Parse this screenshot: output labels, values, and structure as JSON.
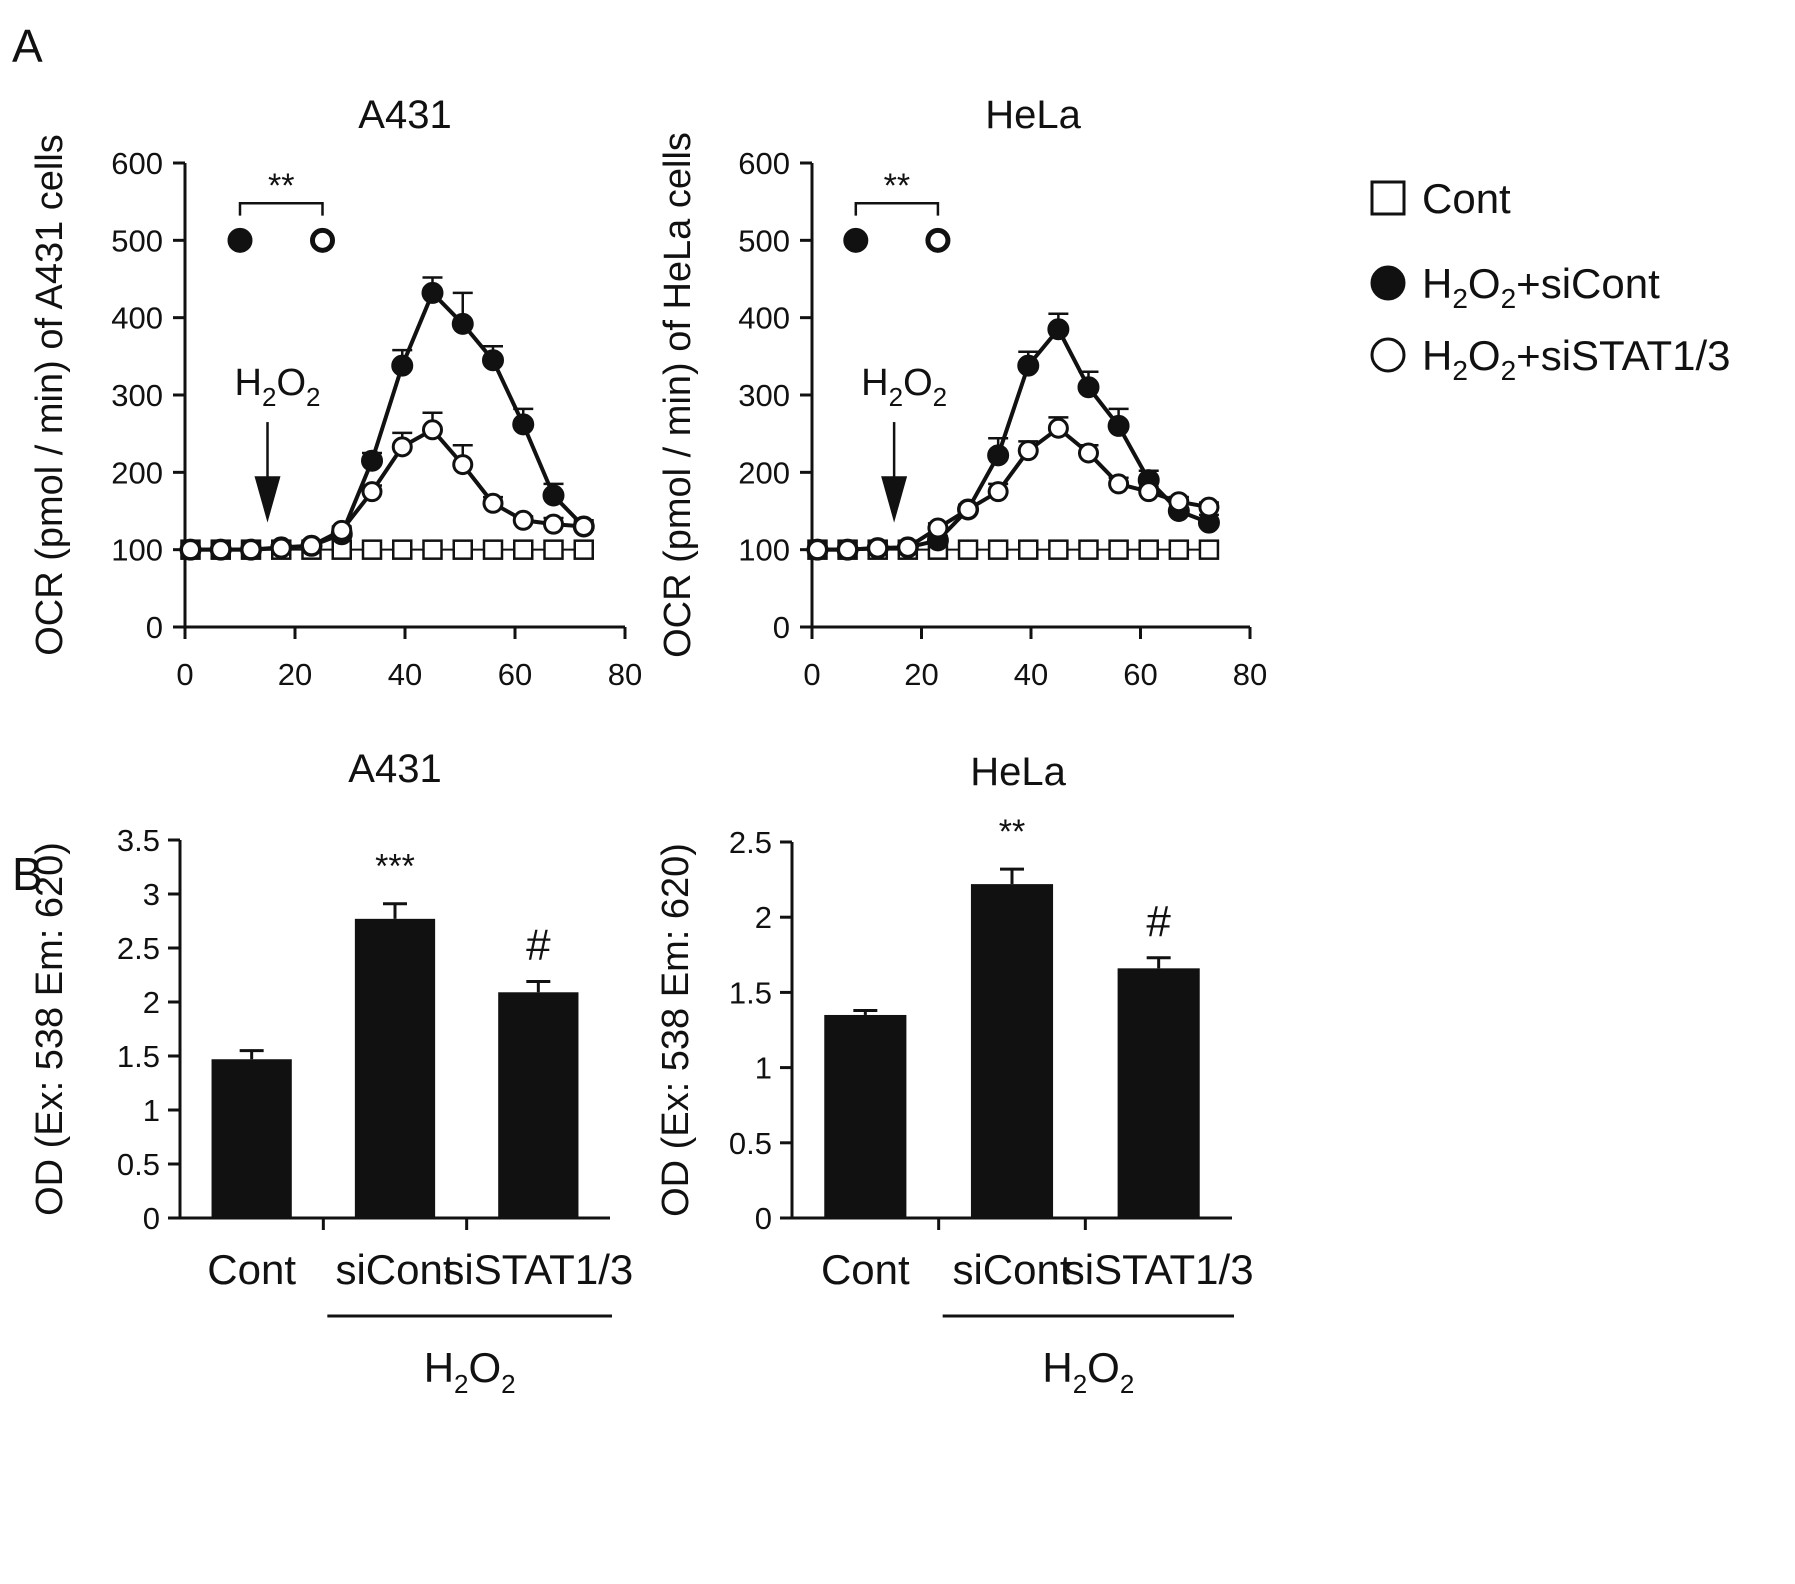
{
  "colors": {
    "ink": "#111111",
    "background": "#ffffff"
  },
  "panels": {
    "a": "A",
    "b": "B"
  },
  "legend": [
    {
      "label": "Cont",
      "marker": "open-square"
    },
    {
      "label_main": "H",
      "label_sub1": "2",
      "label_mid": "O",
      "label_sub2": "2",
      "label_tail": "+siCont",
      "marker": "filled-circle"
    },
    {
      "label_main": "H",
      "label_sub1": "2",
      "label_mid": "O",
      "label_sub2": "2",
      "label_tail": "+siSTAT1/3",
      "marker": "open-circle"
    }
  ],
  "annotations": {
    "h2o2_main": "H",
    "h2o2_sub1": "2",
    "h2o2_mid": "O",
    "h2o2_sub2": "2",
    "stars2": "**",
    "stars3": "***",
    "hash": "#"
  },
  "chart_data": [
    {
      "type": "line",
      "title": "A431",
      "ylabel": "OCR (pmol / min) of A431 cells",
      "xlim": [
        0,
        80
      ],
      "ylim": [
        0,
        600
      ],
      "xticks": [
        "0",
        "20",
        "40",
        "60",
        "80"
      ],
      "yticks": [
        "0",
        "100",
        "200",
        "300",
        "400",
        "500",
        "600"
      ],
      "arrow_x": 15,
      "sig_pair": {
        "x1": 10,
        "x2": 25,
        "y": 500,
        "label": "**"
      },
      "series": [
        {
          "name": "Cont",
          "marker": "open-square",
          "x": [
            1,
            6.5,
            12,
            17.5,
            23,
            28.5,
            34,
            39.5,
            45,
            50.5,
            56,
            61.5,
            67,
            72.5
          ],
          "y": [
            100,
            100,
            100,
            100,
            100,
            100,
            100,
            100,
            100,
            100,
            100,
            100,
            100,
            100
          ],
          "err": [
            0,
            0,
            0,
            0,
            0,
            0,
            0,
            0,
            0,
            0,
            0,
            0,
            0,
            0
          ]
        },
        {
          "name": "H2O2+siCont",
          "marker": "filled-circle",
          "x": [
            1,
            6.5,
            12,
            17.5,
            23,
            28.5,
            34,
            39.5,
            45,
            50.5,
            56,
            61.5,
            67,
            72.5
          ],
          "y": [
            100,
            100,
            100,
            103,
            105,
            120,
            215,
            338,
            432,
            392,
            345,
            262,
            170,
            130
          ],
          "err": [
            0,
            0,
            0,
            0,
            0,
            5,
            10,
            20,
            20,
            40,
            18,
            20,
            15,
            8
          ]
        },
        {
          "name": "H2O2+siSTAT1/3",
          "marker": "open-circle",
          "x": [
            1,
            6.5,
            12,
            17.5,
            23,
            28.5,
            34,
            39.5,
            45,
            50.5,
            56,
            61.5,
            67,
            72.5
          ],
          "y": [
            100,
            100,
            100,
            102,
            105,
            125,
            175,
            233,
            255,
            210,
            160,
            138,
            133,
            130
          ],
          "err": [
            0,
            0,
            0,
            0,
            0,
            5,
            8,
            18,
            22,
            25,
            8,
            5,
            8,
            6
          ]
        }
      ]
    },
    {
      "type": "line",
      "title": "HeLa",
      "ylabel": "OCR (pmol / min) of HeLa cells",
      "xlim": [
        0,
        80
      ],
      "ylim": [
        0,
        600
      ],
      "xticks": [
        "0",
        "20",
        "40",
        "60",
        "80"
      ],
      "yticks": [
        "0",
        "100",
        "200",
        "300",
        "400",
        "500",
        "600"
      ],
      "arrow_x": 15,
      "sig_pair": {
        "x1": 8,
        "x2": 23,
        "y": 500,
        "label": "**"
      },
      "series": [
        {
          "name": "Cont",
          "marker": "open-square",
          "x": [
            1,
            6.5,
            12,
            17.5,
            23,
            28.5,
            34,
            39.5,
            45,
            50.5,
            56,
            61.5,
            67,
            72.5
          ],
          "y": [
            100,
            100,
            100,
            100,
            100,
            100,
            100,
            100,
            100,
            100,
            100,
            100,
            100,
            100
          ],
          "err": [
            0,
            0,
            0,
            0,
            0,
            0,
            0,
            0,
            0,
            0,
            0,
            0,
            0,
            0
          ]
        },
        {
          "name": "H2O2+siCont",
          "marker": "filled-circle",
          "x": [
            1,
            6.5,
            12,
            17.5,
            23,
            28.5,
            34,
            39.5,
            45,
            50.5,
            56,
            61.5,
            67,
            72.5
          ],
          "y": [
            100,
            100,
            102,
            103,
            112,
            152,
            222,
            338,
            385,
            310,
            260,
            190,
            150,
            135
          ],
          "err": [
            0,
            0,
            0,
            0,
            6,
            6,
            22,
            18,
            20,
            20,
            22,
            12,
            18,
            10
          ]
        },
        {
          "name": "H2O2+siSTAT1/3",
          "marker": "open-circle",
          "x": [
            1,
            6.5,
            12,
            17.5,
            23,
            28.5,
            34,
            39.5,
            45,
            50.5,
            56,
            61.5,
            67,
            72.5
          ],
          "y": [
            100,
            100,
            102,
            103,
            128,
            152,
            175,
            228,
            257,
            225,
            185,
            175,
            162,
            155
          ],
          "err": [
            0,
            0,
            0,
            0,
            6,
            6,
            10,
            12,
            14,
            10,
            8,
            6,
            6,
            6
          ]
        }
      ]
    },
    {
      "type": "bar",
      "title": "A431",
      "ylabel": "OD (Ex: 538 Em: 620)",
      "ylim": [
        0,
        3.5
      ],
      "yticks": [
        "0",
        "0.5",
        "1",
        "1.5",
        "2",
        "2.5",
        "3",
        "3.5"
      ],
      "categories": [
        "Cont",
        "siCont",
        "siSTAT1/3"
      ],
      "values": [
        1.47,
        2.77,
        2.09
      ],
      "err": [
        0.08,
        0.14,
        0.1
      ],
      "sig": [
        "",
        "***",
        "#"
      ],
      "group_label": {
        "main": "H",
        "sub1": "2",
        "mid": "O",
        "sub2": "2"
      }
    },
    {
      "type": "bar",
      "title": "HeLa",
      "ylabel": "OD (Ex: 538 Em: 620)",
      "ylim": [
        0,
        2.5
      ],
      "yticks": [
        "0",
        "0.5",
        "1",
        "1.5",
        "2",
        "2.5"
      ],
      "categories": [
        "Cont",
        "siCont",
        "siSTAT1/3"
      ],
      "values": [
        1.35,
        2.22,
        1.66
      ],
      "err": [
        0.03,
        0.1,
        0.07
      ],
      "sig": [
        "",
        "**",
        "#"
      ],
      "group_label": {
        "main": "H",
        "sub1": "2",
        "mid": "O",
        "sub2": "2"
      }
    }
  ]
}
